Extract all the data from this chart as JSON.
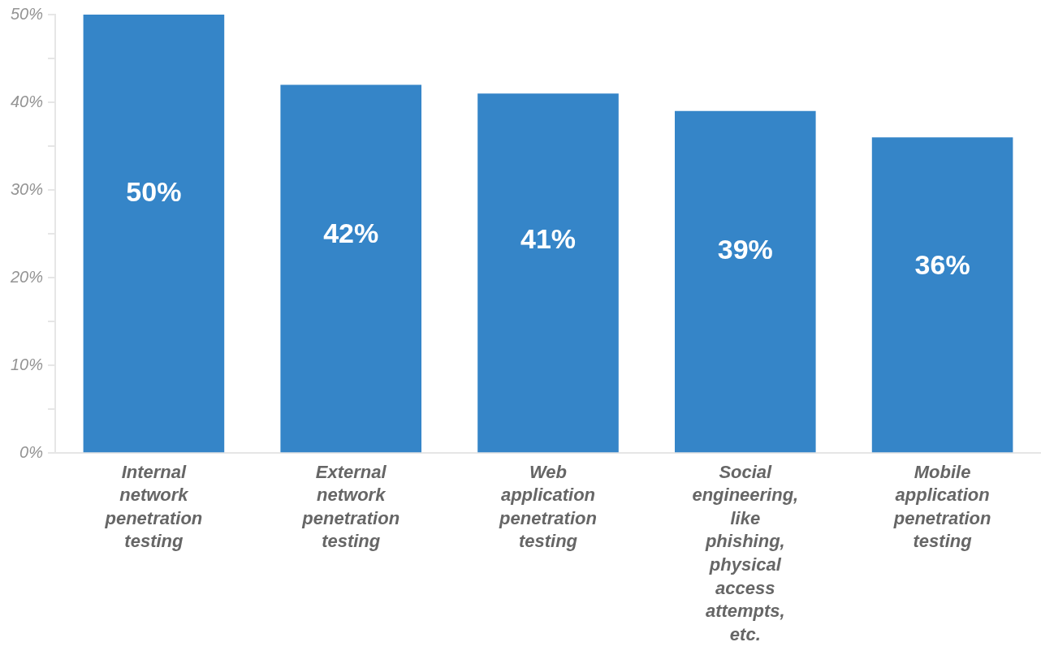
{
  "chart_data": {
    "type": "bar",
    "categories": [
      "Internal network penetration testing",
      "External network penetration testing",
      "Web application penetration testing",
      "Social engineering, like phishing, physical access attempts, etc.",
      "Mobile application penetration testing"
    ],
    "values": [
      50,
      42,
      41,
      39,
      36
    ],
    "color": "#3585c8",
    "ylim": [
      0,
      50
    ],
    "yticks": [
      {
        "value": 0,
        "label": "0%"
      },
      {
        "value": 5,
        "label": null
      },
      {
        "value": 10,
        "label": "10%"
      },
      {
        "value": 15,
        "label": null
      },
      {
        "value": 20,
        "label": "20%"
      },
      {
        "value": 25,
        "label": null
      },
      {
        "value": 30,
        "label": "30%"
      },
      {
        "value": 35,
        "label": null
      },
      {
        "value": 40,
        "label": "40%"
      },
      {
        "value": 45,
        "label": null
      },
      {
        "value": 50,
        "label": "50%"
      }
    ],
    "value_labels": [
      "50%",
      "42%",
      "41%",
      "39%",
      "36%"
    ],
    "grid": false,
    "legend": false
  }
}
